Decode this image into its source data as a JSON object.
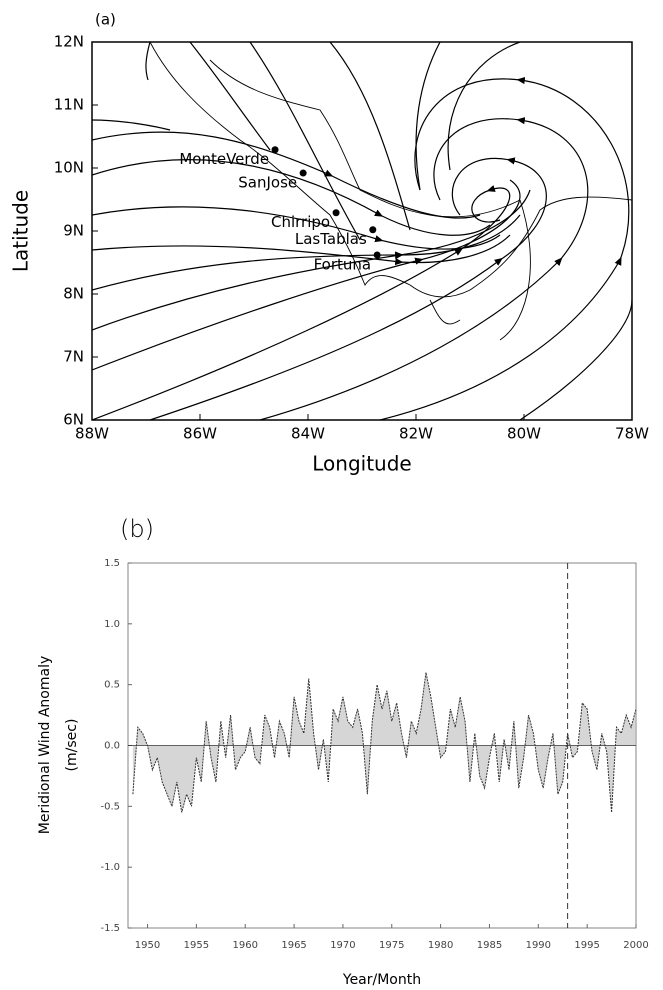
{
  "chart_data": [
    {
      "type": "scatter",
      "title": "(a)",
      "xlabel": "Longitude",
      "ylabel": "Latitude",
      "xlim": [
        -88,
        -78
      ],
      "xticks": [
        {
          "value": -88,
          "label": "88W"
        },
        {
          "value": -86,
          "label": "86W"
        },
        {
          "value": -84,
          "label": "84W"
        },
        {
          "value": -82,
          "label": "82W"
        },
        {
          "value": -80,
          "label": "80W"
        },
        {
          "value": -78,
          "label": "78W"
        }
      ],
      "ylim": [
        6,
        12
      ],
      "yticks": [
        {
          "value": 6,
          "label": "6N"
        },
        {
          "value": 7,
          "label": "7N"
        },
        {
          "value": 8,
          "label": "8N"
        },
        {
          "value": 9,
          "label": "9N"
        },
        {
          "value": 10,
          "label": "10N"
        },
        {
          "value": 11,
          "label": "11N"
        },
        {
          "value": 12,
          "label": "12N"
        }
      ],
      "x": [
        -84.61,
        -84.09,
        -83.48,
        -82.8,
        -82.72
      ],
      "values": [
        10.29,
        9.92,
        9.29,
        9.02,
        8.62
      ],
      "point_labels": [
        "MonteVerde",
        "SanJose",
        "Chirripo",
        "LasTablas",
        "Fortuna"
      ],
      "color": "#000000"
    },
    {
      "type": "line",
      "title": "(b)",
      "xlabel": "Year/Month",
      "ylabel": [
        "Meridional Wind Anomaly",
        "(m/sec)"
      ],
      "xlim": [
        1948,
        2000
      ],
      "xticks": [
        1950,
        1955,
        1960,
        1965,
        1970,
        1975,
        1980,
        1985,
        1990,
        1995,
        2000
      ],
      "ylim": [
        -1.5,
        1.5
      ],
      "yticks": [
        -1.5,
        {
          "value": -1,
          "label": "-1.0"
        },
        -0.5,
        {
          "value": 0,
          "label": "0.0"
        },
        0.5,
        {
          "value": 1,
          "label": "1.0"
        },
        1.5
      ],
      "reference_x": 1993,
      "color": "#333333",
      "x": [
        1948.5,
        1949,
        1949.5,
        1950,
        1950.5,
        1951,
        1951.5,
        1952,
        1952.5,
        1953,
        1953.5,
        1954,
        1954.5,
        1955,
        1955.5,
        1956,
        1956.5,
        1957,
        1957.5,
        1958,
        1958.5,
        1959,
        1959.5,
        1960,
        1960.5,
        1961,
        1961.5,
        1962,
        1962.5,
        1963,
        1963.5,
        1964,
        1964.5,
        1965,
        1965.5,
        1966,
        1966.5,
        1967,
        1967.5,
        1968,
        1968.5,
        1969,
        1969.5,
        1970,
        1970.5,
        1971,
        1971.5,
        1972,
        1972.5,
        1973,
        1973.5,
        1974,
        1974.5,
        1975,
        1975.5,
        1976,
        1976.5,
        1977,
        1977.5,
        1978,
        1978.5,
        1979,
        1979.5,
        1980,
        1980.5,
        1981,
        1981.5,
        1982,
        1982.5,
        1983,
        1983.5,
        1984,
        1984.5,
        1985,
        1985.5,
        1986,
        1986.5,
        1987,
        1987.5,
        1988,
        1988.5,
        1989,
        1989.5,
        1990,
        1990.5,
        1991,
        1991.5,
        1992,
        1992.5,
        1993,
        1993.5,
        1994,
        1994.5,
        1995,
        1995.5,
        1996,
        1996.5,
        1997,
        1997.5,
        1998,
        1998.5,
        1999,
        1999.5,
        2000
      ],
      "values": [
        -0.4,
        0.15,
        0.1,
        0,
        -0.2,
        -0.1,
        -0.3,
        -0.4,
        -0.5,
        -0.3,
        -0.55,
        -0.4,
        -0.5,
        -0.1,
        -0.3,
        0.2,
        -0.1,
        -0.3,
        0.2,
        -0.1,
        0.25,
        -0.2,
        -0.1,
        -0.05,
        0.15,
        -0.1,
        -0.15,
        0.25,
        0.15,
        -0.1,
        0.2,
        0.1,
        -0.1,
        0.4,
        0.2,
        0.1,
        0.55,
        0.1,
        -0.2,
        0.05,
        -0.3,
        0.3,
        0.2,
        0.4,
        0.2,
        0.15,
        0.3,
        0.1,
        -0.4,
        0.2,
        0.5,
        0.3,
        0.45,
        0.2,
        0.35,
        0.1,
        -0.1,
        0.2,
        0.1,
        0.3,
        0.6,
        0.4,
        0.15,
        -0.1,
        -0.05,
        0.3,
        0.15,
        0.4,
        0.2,
        -0.3,
        0.1,
        -0.25,
        -0.35,
        -0.1,
        0.1,
        -0.3,
        0.05,
        -0.2,
        0.2,
        -0.35,
        -0.1,
        0.25,
        0.1,
        -0.2,
        -0.35,
        -0.1,
        0.1,
        -0.4,
        -0.3,
        0.1,
        -0.1,
        -0.05,
        0.35,
        0.3,
        -0.05,
        -0.2,
        0.1,
        -0.05,
        -0.55,
        0.15,
        0.1,
        0.25,
        0.15,
        0.3
      ]
    }
  ]
}
